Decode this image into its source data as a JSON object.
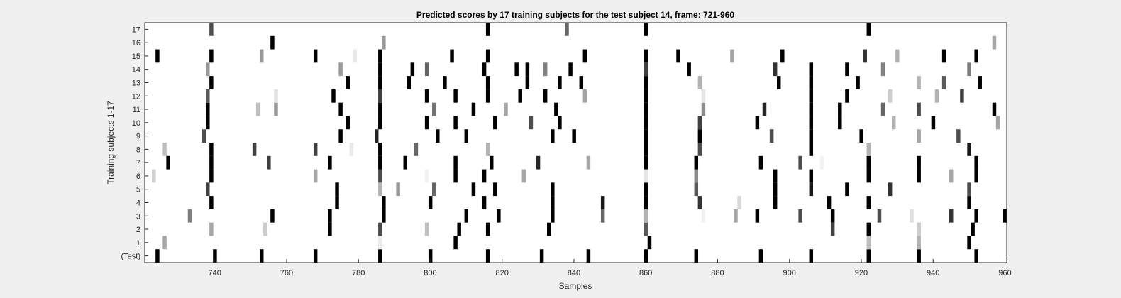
{
  "chart_data": {
    "type": "heatmap",
    "title": "Predicted scores by 17 training subjects for the test subject 14, frame: 721-960",
    "xlabel": "Samples",
    "ylabel": "Training subjects 1-17",
    "xlim": [
      721,
      960
    ],
    "x_ticks": [
      740,
      760,
      780,
      800,
      820,
      840,
      860,
      880,
      900,
      920,
      940,
      960
    ],
    "rows": [
      "(Test)",
      "1",
      "2",
      "3",
      "4",
      "5",
      "6",
      "7",
      "8",
      "9",
      "10",
      "11",
      "12",
      "13",
      "14",
      "15",
      "16",
      "17"
    ],
    "grid": false,
    "colormap": "white (0) to black (1)",
    "note_values": "each cell = [sample, intensity 0-1]",
    "cells": {
      "(Test)": [
        [
          724,
          1
        ],
        [
          740,
          1
        ],
        [
          753,
          1
        ],
        [
          768,
          1
        ],
        [
          786,
          1
        ],
        [
          800,
          1
        ],
        [
          816,
          1
        ],
        [
          831,
          1
        ],
        [
          844,
          1
        ],
        [
          860,
          1
        ],
        [
          874,
          1
        ],
        [
          892,
          1
        ],
        [
          906,
          1
        ],
        [
          922,
          1
        ],
        [
          936,
          1
        ],
        [
          952,
          1
        ]
      ],
      "1": [
        [
          726,
          0.35
        ],
        [
          786,
          0.08
        ],
        [
          807,
          1
        ],
        [
          861,
          1
        ],
        [
          922,
          0.25
        ],
        [
          936,
          0.3
        ],
        [
          950,
          1
        ]
      ],
      "2": [
        [
          739,
          0.35
        ],
        [
          754,
          0.2
        ],
        [
          772,
          1
        ],
        [
          786,
          0.7
        ],
        [
          799,
          0.25
        ],
        [
          808,
          1
        ],
        [
          816,
          1
        ],
        [
          833,
          1
        ],
        [
          860,
          0.65
        ],
        [
          912,
          0.75
        ],
        [
          922,
          1
        ],
        [
          936,
          0.2
        ],
        [
          951,
          1
        ]
      ],
      "3": [
        [
          733,
          0.5
        ],
        [
          756,
          1
        ],
        [
          772,
          1
        ],
        [
          787,
          1
        ],
        [
          810,
          1
        ],
        [
          819,
          1
        ],
        [
          834,
          1
        ],
        [
          848,
          0.6
        ],
        [
          860,
          0.3
        ],
        [
          876,
          0.05
        ],
        [
          885,
          0.35
        ],
        [
          891,
          1
        ],
        [
          903,
          0.7
        ],
        [
          912,
          1
        ],
        [
          925,
          0.7
        ],
        [
          934,
          0.12
        ],
        [
          945,
          0.8
        ],
        [
          952,
          1
        ],
        [
          960,
          1
        ]
      ],
      "4": [
        [
          739,
          1
        ],
        [
          774,
          1
        ],
        [
          787,
          1
        ],
        [
          800,
          1
        ],
        [
          815,
          1
        ],
        [
          834,
          1
        ],
        [
          848,
          0.9
        ],
        [
          860,
          1
        ],
        [
          875,
          0.8
        ],
        [
          886,
          0.15
        ],
        [
          896,
          1
        ],
        [
          911,
          1
        ],
        [
          922,
          1
        ],
        [
          950,
          1
        ]
      ],
      "5": [
        [
          738,
          0.75
        ],
        [
          774,
          1
        ],
        [
          786,
          0.3
        ],
        [
          791,
          0.4
        ],
        [
          801,
          0.6
        ],
        [
          812,
          1
        ],
        [
          818,
          1
        ],
        [
          834,
          1
        ],
        [
          860,
          1
        ],
        [
          874,
          0.65
        ],
        [
          896,
          1
        ],
        [
          906,
          0.9
        ],
        [
          916,
          1
        ],
        [
          928,
          0.8
        ],
        [
          950,
          0.7
        ]
      ],
      "6": [
        [
          723,
          0.18
        ],
        [
          739,
          1
        ],
        [
          768,
          0.35
        ],
        [
          786,
          0.7
        ],
        [
          799,
          0.05
        ],
        [
          807,
          1
        ],
        [
          815,
          1
        ],
        [
          826,
          0.35
        ],
        [
          860,
          0.1
        ],
        [
          874,
          0.45
        ],
        [
          896,
          1
        ],
        [
          906,
          1
        ],
        [
          922,
          1
        ],
        [
          936,
          1
        ],
        [
          945,
          0.35
        ],
        [
          952,
          1
        ]
      ],
      "7": [
        [
          727,
          1
        ],
        [
          739,
          1
        ],
        [
          755,
          0.75
        ],
        [
          772,
          1
        ],
        [
          786,
          1
        ],
        [
          793,
          1
        ],
        [
          807,
          1
        ],
        [
          817,
          1
        ],
        [
          830,
          0.85
        ],
        [
          844,
          0.35
        ],
        [
          860,
          1
        ],
        [
          874,
          1
        ],
        [
          892,
          1
        ],
        [
          903,
          0.7
        ],
        [
          909,
          0.05
        ],
        [
          922,
          1
        ],
        [
          936,
          1
        ],
        [
          952,
          1
        ]
      ],
      "8": [
        [
          726,
          0.25
        ],
        [
          739,
          1
        ],
        [
          751,
          0.75
        ],
        [
          768,
          0.75
        ],
        [
          778,
          0.08
        ],
        [
          786,
          1
        ],
        [
          796,
          0.6
        ],
        [
          816,
          0.3
        ],
        [
          860,
          1
        ],
        [
          875,
          0.7
        ],
        [
          906,
          1
        ],
        [
          922,
          0.3
        ],
        [
          950,
          0.9
        ]
      ],
      "9": [
        [
          737,
          0.7
        ],
        [
          775,
          1
        ],
        [
          785,
          0.85
        ],
        [
          802,
          1
        ],
        [
          810,
          1
        ],
        [
          834,
          1
        ],
        [
          840,
          1
        ],
        [
          860,
          1
        ],
        [
          875,
          1
        ],
        [
          895,
          0.7
        ],
        [
          906,
          1
        ],
        [
          920,
          1
        ],
        [
          936,
          0.35
        ],
        [
          947,
          0.7
        ]
      ],
      "10": [
        [
          738,
          1
        ],
        [
          777,
          1
        ],
        [
          786,
          1
        ],
        [
          799,
          1
        ],
        [
          807,
          1
        ],
        [
          818,
          1
        ],
        [
          828,
          0.7
        ],
        [
          836,
          1
        ],
        [
          860,
          1
        ],
        [
          875,
          0.75
        ],
        [
          891,
          1
        ],
        [
          906,
          1
        ],
        [
          914,
          1
        ],
        [
          929,
          0.3
        ],
        [
          940,
          1
        ],
        [
          958,
          0.35
        ]
      ],
      "11": [
        [
          738,
          1
        ],
        [
          752,
          0.25
        ],
        [
          757,
          0.4
        ],
        [
          775,
          1
        ],
        [
          786,
          1
        ],
        [
          801,
          0.55
        ],
        [
          812,
          1
        ],
        [
          821,
          0.35
        ],
        [
          835,
          1
        ],
        [
          860,
          1
        ],
        [
          876,
          0.45
        ],
        [
          893,
          0.85
        ],
        [
          906,
          1
        ],
        [
          914,
          1
        ],
        [
          926,
          0.6
        ],
        [
          936,
          0.7
        ],
        [
          957,
          1
        ]
      ],
      "12": [
        [
          738,
          0.65
        ],
        [
          757,
          0.12
        ],
        [
          773,
          1
        ],
        [
          786,
          0.75
        ],
        [
          799,
          1
        ],
        [
          807,
          1
        ],
        [
          816,
          1
        ],
        [
          825,
          1
        ],
        [
          832,
          1
        ],
        [
          843,
          0.35
        ],
        [
          860,
          1
        ],
        [
          876,
          0.1
        ],
        [
          906,
          1
        ],
        [
          916,
          1
        ],
        [
          928,
          0.2
        ],
        [
          941,
          0.3
        ],
        [
          948,
          0.75
        ]
      ],
      "13": [
        [
          739,
          1
        ],
        [
          777,
          1
        ],
        [
          786,
          1
        ],
        [
          794,
          1
        ],
        [
          804,
          1
        ],
        [
          816,
          1
        ],
        [
          827,
          1
        ],
        [
          836,
          1
        ],
        [
          842,
          1
        ],
        [
          860,
          1
        ],
        [
          875,
          0.3
        ],
        [
          897,
          1
        ],
        [
          906,
          1
        ],
        [
          919,
          1
        ],
        [
          936,
          0.3
        ],
        [
          943,
          0.65
        ],
        [
          953,
          1
        ]
      ],
      "14": [
        [
          738,
          0.4
        ],
        [
          775,
          0.4
        ],
        [
          786,
          1
        ],
        [
          795,
          1
        ],
        [
          799,
          0.6
        ],
        [
          815,
          1
        ],
        [
          824,
          1
        ],
        [
          827,
          1
        ],
        [
          832,
          0.5
        ],
        [
          839,
          1
        ],
        [
          860,
          0.75
        ],
        [
          872,
          1
        ],
        [
          896,
          0.8
        ],
        [
          906,
          1
        ],
        [
          916,
          1
        ],
        [
          926,
          0.5
        ],
        [
          950,
          0.5
        ]
      ],
      "15": [
        [
          724,
          1
        ],
        [
          739,
          1
        ],
        [
          753,
          0.4
        ],
        [
          768,
          1
        ],
        [
          779,
          0.08
        ],
        [
          786,
          1
        ],
        [
          806,
          1
        ],
        [
          816,
          1
        ],
        [
          843,
          1
        ],
        [
          860,
          1
        ],
        [
          869,
          1
        ],
        [
          884,
          0.35
        ],
        [
          898,
          1
        ],
        [
          921,
          0.8
        ],
        [
          930,
          0.3
        ],
        [
          943,
          1
        ],
        [
          952,
          1
        ]
      ],
      "16": [
        [
          756,
          1
        ],
        [
          787,
          0.4
        ],
        [
          957,
          0.35
        ]
      ],
      "17": [
        [
          739,
          0.7
        ],
        [
          816,
          1
        ],
        [
          838,
          0.6
        ],
        [
          860,
          1
        ],
        [
          922,
          1
        ]
      ]
    }
  }
}
